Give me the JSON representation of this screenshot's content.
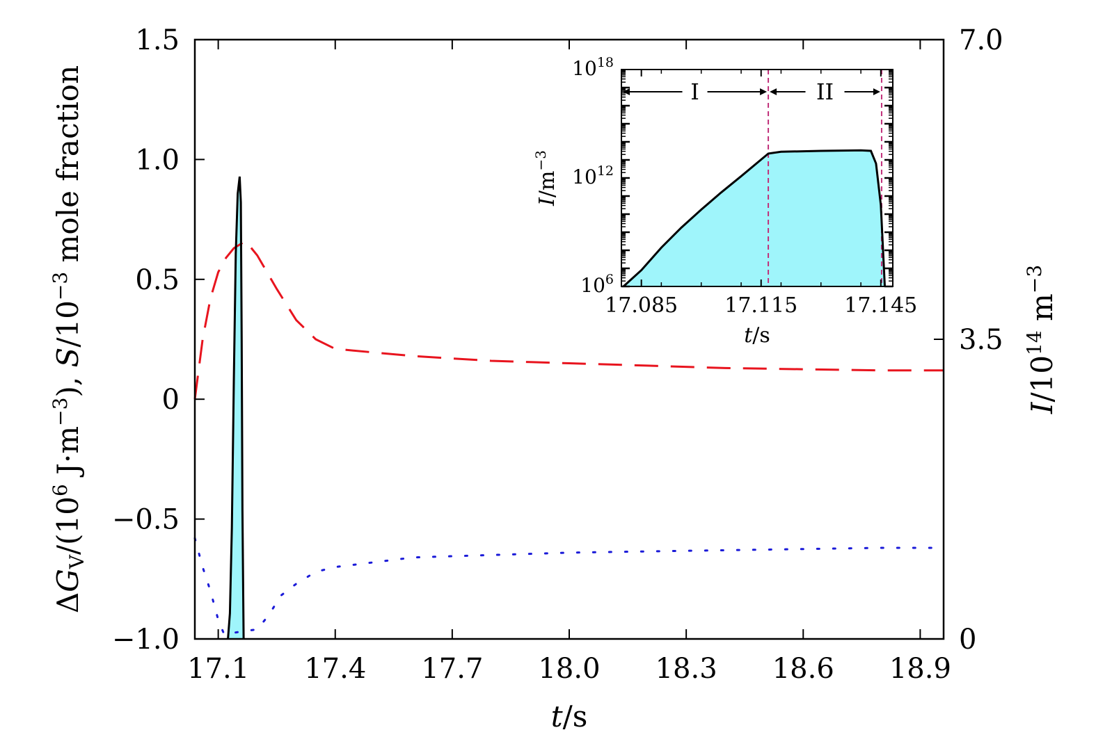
{
  "chart_data": [
    {
      "type": "line",
      "xlabel": "t/s",
      "ylabel_left": "ΔG_V/(10^6 J·m^-3), S/10^-3 mole fraction",
      "ylabel_right": "I/10^14 m^-3",
      "xlim": [
        17.04,
        18.96
      ],
      "ylim_left": [
        -1.0,
        1.5
      ],
      "ylim_right": [
        0,
        7.0
      ],
      "x_ticks": [
        "17.1",
        "17.4",
        "17.7",
        "18.0",
        "18.3",
        "18.6",
        "18.9"
      ],
      "x_tick_values": [
        17.1,
        17.4,
        17.7,
        18.0,
        18.3,
        18.6,
        18.9
      ],
      "y_left_ticks": [
        "1.5",
        "1.0",
        "0.5",
        "0",
        "−0.5",
        "−1.0"
      ],
      "y_left_tick_values": [
        1.5,
        1.0,
        0.5,
        0,
        -0.5,
        -1.0
      ],
      "y_right_ticks": [
        "7.0",
        "3.5",
        "0"
      ],
      "y_right_tick_values": [
        7.0,
        3.5,
        0
      ],
      "grid": false,
      "series": [
        {
          "style": "dashed",
          "color": "#e8141e",
          "axis": "left",
          "x": [
            17.04,
            17.06,
            17.08,
            17.1,
            17.12,
            17.14,
            17.17,
            17.2,
            17.25,
            17.3,
            17.35,
            17.4,
            17.5,
            17.6,
            17.7,
            17.8,
            17.9,
            18.0,
            18.2,
            18.4,
            18.6,
            18.8,
            18.96
          ],
          "y": [
            0.0,
            0.25,
            0.42,
            0.53,
            0.59,
            0.63,
            0.66,
            0.6,
            0.46,
            0.33,
            0.25,
            0.21,
            0.195,
            0.18,
            0.17,
            0.16,
            0.155,
            0.15,
            0.14,
            0.13,
            0.125,
            0.12,
            0.12
          ]
        },
        {
          "style": "dotted",
          "color": "#1a1ad8",
          "axis": "left",
          "x": [
            17.04,
            17.06,
            17.08,
            17.1,
            17.115,
            17.2,
            17.23,
            17.26,
            17.3,
            17.35,
            17.4,
            17.5,
            17.6,
            17.7,
            17.8,
            17.9,
            18.0,
            18.2,
            18.4,
            18.6,
            18.8,
            18.96
          ],
          "y": [
            -0.58,
            -0.7,
            -0.8,
            -0.92,
            -0.98,
            -0.96,
            -0.9,
            -0.82,
            -0.77,
            -0.72,
            -0.7,
            -0.68,
            -0.66,
            -0.655,
            -0.65,
            -0.645,
            -0.64,
            -0.635,
            -0.63,
            -0.625,
            -0.62,
            -0.62
          ]
        },
        {
          "style": "solid-filled",
          "color": "#000000",
          "fill": "#9ff5fb",
          "axis": "right",
          "x": [
            17.125,
            17.13,
            17.135,
            17.14,
            17.145,
            17.15,
            17.155,
            17.158,
            17.16,
            17.162,
            17.165
          ],
          "y": [
            0.0,
            0.3,
            1.3,
            3.0,
            4.5,
            5.2,
            5.4,
            5.1,
            3.5,
            1.5,
            0.0
          ]
        }
      ]
    },
    {
      "type": "area",
      "inset": true,
      "xlabel": "t/s",
      "ylabel": "I/m^-3",
      "xlim": [
        17.08,
        17.148
      ],
      "ylim_log10": [
        6,
        18
      ],
      "log_y": true,
      "x_ticks": [
        "17.085",
        "17.115",
        "17.145"
      ],
      "x_tick_values": [
        17.085,
        17.115,
        17.145
      ],
      "y_ticks": [
        {
          "base": "10",
          "exp": "18",
          "value_log10": 18
        },
        {
          "base": "10",
          "exp": "12",
          "value_log10": 12
        },
        {
          "base": "10",
          "exp": "6",
          "value_log10": 6
        }
      ],
      "regions": [
        {
          "label": "I",
          "from": 17.08,
          "to": 17.1168
        },
        {
          "label": "II",
          "from": 17.1168,
          "to": 17.1452
        }
      ],
      "vlines": [
        17.1168,
        17.1452
      ],
      "vline_color": "#c0307a",
      "fill_color": "#9ff5fb",
      "series": [
        {
          "x": [
            17.0805,
            17.085,
            17.09,
            17.095,
            17.1,
            17.105,
            17.11,
            17.1168,
            17.12,
            17.13,
            17.14,
            17.1425,
            17.1438,
            17.145,
            17.146
          ],
          "log10_y": [
            6.0,
            6.9,
            8.15,
            9.25,
            10.25,
            11.2,
            12.1,
            13.35,
            13.45,
            13.5,
            13.53,
            13.5,
            12.8,
            10.5,
            6.0
          ]
        }
      ]
    }
  ],
  "labels": {
    "x_axis": {
      "italic": "t",
      "rest": "/s"
    },
    "left_axis": {
      "delta": "Δ",
      "G": "G",
      "V": "V",
      "p1": "/(10",
      "exp6": "6",
      "p2": " J·m",
      "expm3": "−3",
      "p3": "), ",
      "S": "S",
      "p4": "/10",
      "expm3b": "−3",
      "p5": " mole fraction"
    },
    "right_axis": {
      "I": "I",
      "p1": "/10",
      "exp14": "14",
      "p2": " m",
      "expm3": "−3"
    },
    "inset_x": {
      "italic": "t",
      "rest": "/s"
    },
    "inset_y": {
      "I": "I",
      "p1": "/m",
      "expm3": "−3"
    }
  }
}
